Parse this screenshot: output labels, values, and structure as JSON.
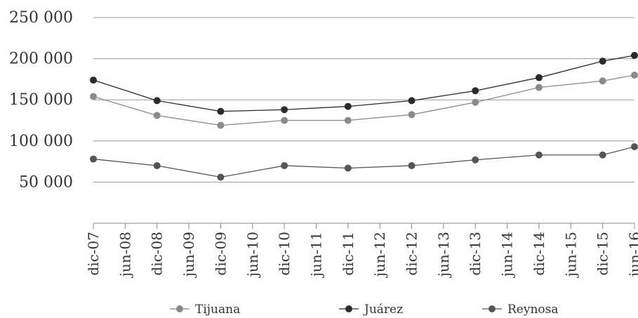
{
  "chart_data": {
    "type": "line",
    "title": "",
    "xlabel": "",
    "ylabel": "",
    "ylim": [
      0,
      250000
    ],
    "y_ticks": [
      50000,
      100000,
      150000,
      200000,
      250000
    ],
    "y_tick_labels": [
      "50 000",
      "100 000",
      "150 000",
      "200 000",
      "250 000"
    ],
    "x_range": [
      "dic-07",
      "jun-16"
    ],
    "x_tick_labels": [
      "dic-07",
      "jun-08",
      "dic-08",
      "jun-09",
      "dic-09",
      "jun-10",
      "dic-10",
      "jun-11",
      "dic-11",
      "jun-12",
      "dic-12",
      "jun-13",
      "dic-13",
      "jun-14",
      "dic-14",
      "jun-15",
      "dic-15",
      "jun-16"
    ],
    "x": [
      "dic-07",
      "dic-08",
      "dic-09",
      "dic-10",
      "dic-11",
      "dic-12",
      "dic-13",
      "dic-14",
      "dic-15",
      "jun-16"
    ],
    "grid": "horizontal",
    "legend_position": "bottom",
    "series": [
      {
        "name": "Tijuana",
        "color": "#8a8a8a",
        "values": [
          154000,
          131000,
          119000,
          125000,
          125000,
          132000,
          147000,
          165000,
          173000,
          180000
        ]
      },
      {
        "name": "Juárez",
        "color": "#2b2b2b",
        "values": [
          174000,
          149000,
          136000,
          138000,
          142000,
          149000,
          161000,
          177000,
          197000,
          204000
        ]
      },
      {
        "name": "Reynosa",
        "color": "#555555",
        "values": [
          78000,
          70000,
          56000,
          70000,
          67000,
          70000,
          77000,
          83000,
          83000,
          93000
        ]
      }
    ]
  }
}
